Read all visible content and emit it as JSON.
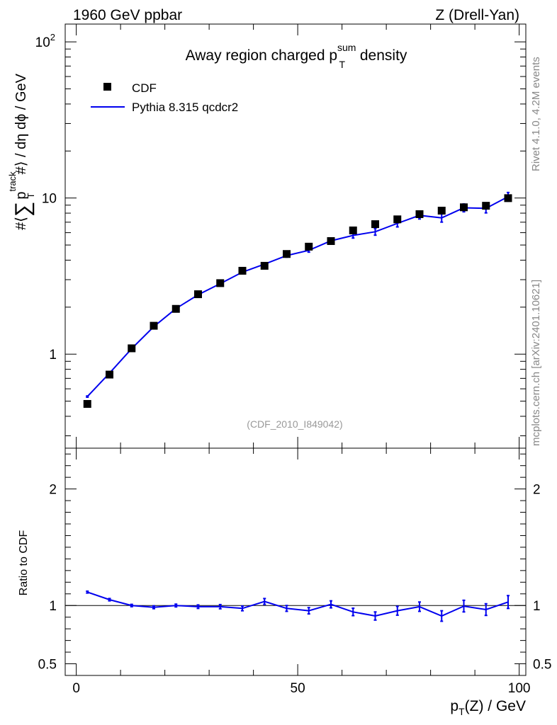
{
  "header": {
    "left": "1960 GeV ppbar",
    "right": "Z (Drell-Yan)"
  },
  "side_labels": {
    "rivet": "Rivet 4.1.0,  4.2M events",
    "mcplots": "mcplots.cern.ch [arXiv:2401.10621]"
  },
  "colors": {
    "data": "#000000",
    "mc": "#0000ee",
    "watermark": "#999999",
    "side_text": "#888888"
  },
  "chart_data": [
    {
      "type": "scatter",
      "title": "Away region charged p_T^sum density",
      "title_parts": {
        "main": "Away region charged p",
        "sup": "sum",
        "sub": "T",
        "tail": " density"
      },
      "ylabel": "#⟨ ∑ p_T^track #⟩ / dη dϕ / GeV",
      "ylabel_parts": {
        "pre": "#⟨",
        "sum": "∑",
        "p": "p",
        "sup": "track",
        "sub": "T",
        "post": "#⟩ / dη dϕ / GeV"
      },
      "yscale": "log",
      "ylim": [
        0.25,
        130
      ],
      "xlim": [
        -2.5,
        101.5
      ],
      "y_tick_labels": [
        {
          "value": 1,
          "label": "1"
        },
        {
          "value": 10,
          "label": "10"
        },
        {
          "value": 100,
          "base": "10",
          "exp": "2"
        }
      ],
      "watermark": "(CDF_2010_I849042)",
      "legend": [
        {
          "label": "CDF",
          "marker": "square"
        },
        {
          "label": "Pythia 8.315 qcdcr2",
          "marker": "line"
        }
      ],
      "legend_position": "top-left",
      "x": [
        2.5,
        7.5,
        12.5,
        17.5,
        22.5,
        27.5,
        32.5,
        37.5,
        42.5,
        47.5,
        52.5,
        57.5,
        62.5,
        67.5,
        72.5,
        77.5,
        82.5,
        87.5,
        92.5,
        97.5
      ],
      "series": [
        {
          "name": "CDF",
          "values": [
            0.48,
            0.74,
            1.09,
            1.52,
            1.95,
            2.42,
            2.85,
            3.42,
            3.68,
            4.38,
            4.88,
            5.3,
            6.2,
            6.8,
            7.3,
            7.88,
            8.3,
            8.72,
            8.92,
            9.98
          ]
        },
        {
          "name": "Pythia 8.315 qcdcr2",
          "values": [
            0.535,
            0.755,
            1.085,
            1.5,
            1.96,
            2.4,
            2.83,
            3.35,
            3.77,
            4.28,
            4.62,
            5.32,
            5.76,
            6.08,
            6.88,
            7.74,
            7.46,
            8.66,
            8.58,
            10.2
          ],
          "errors": [
            0.005,
            0.01,
            0.01,
            0.02,
            0.02,
            0.03,
            0.04,
            0.06,
            0.07,
            0.1,
            0.12,
            0.16,
            0.22,
            0.3,
            0.35,
            0.4,
            0.45,
            0.5,
            0.55,
            0.65
          ]
        }
      ]
    },
    {
      "type": "line",
      "ylabel": "Ratio to CDF",
      "xlabel": "p_T(Z) / GeV",
      "xlabel_parts": {
        "p": "p",
        "sub": "T",
        "tail": "(Z) / GeV"
      },
      "ylim": [
        0.4,
        2.35
      ],
      "xlim": [
        -2.5,
        101.5
      ],
      "y_tick_labels": [
        {
          "value": 0.5,
          "label": "0.5"
        },
        {
          "value": 1,
          "label": "1"
        },
        {
          "value": 2,
          "label": "2"
        }
      ],
      "x_tick_labels": [
        {
          "value": 0,
          "label": "0"
        },
        {
          "value": 50,
          "label": "50"
        },
        {
          "value": 100,
          "label": "100"
        }
      ],
      "reference_line": 1,
      "series": [
        {
          "name": "Pythia 8.315 qcdcr2",
          "values": [
            1.115,
            1.05,
            1.0,
            0.985,
            1.0,
            0.99,
            0.99,
            0.975,
            1.035,
            0.975,
            0.955,
            1.01,
            0.945,
            0.91,
            0.955,
            0.99,
            0.91,
            0.995,
            0.965,
            1.03
          ],
          "errors": [
            0.008,
            0.01,
            0.01,
            0.012,
            0.012,
            0.015,
            0.018,
            0.02,
            0.025,
            0.025,
            0.027,
            0.03,
            0.032,
            0.035,
            0.038,
            0.04,
            0.045,
            0.05,
            0.05,
            0.055
          ]
        }
      ]
    }
  ]
}
